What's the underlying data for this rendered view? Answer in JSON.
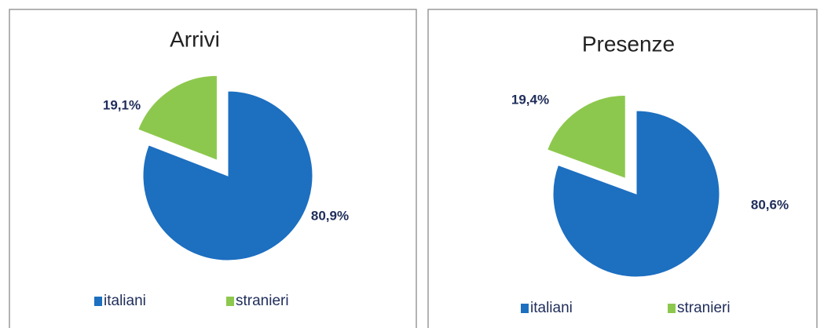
{
  "chart_data": [
    {
      "type": "pie",
      "title": "Arrivi",
      "categories": [
        "italiani",
        "stranieri"
      ],
      "values": [
        80.9,
        19.1
      ],
      "value_labels": [
        "80,9%",
        "19,1%"
      ],
      "colors": [
        "#1d6fc0",
        "#8dc84e"
      ],
      "legend": "bottom"
    },
    {
      "type": "pie",
      "title": "Presenze",
      "categories": [
        "italiani",
        "stranieri"
      ],
      "values": [
        80.6,
        19.4
      ],
      "value_labels": [
        "80,6%",
        "19,4%"
      ],
      "colors": [
        "#1d6fc0",
        "#8dc84e"
      ],
      "legend": "bottom"
    }
  ]
}
